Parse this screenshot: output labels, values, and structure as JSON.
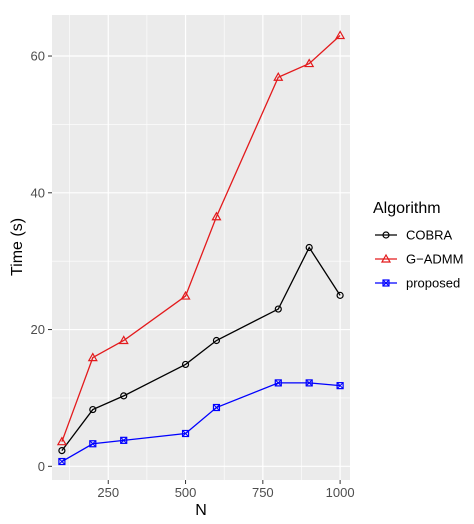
{
  "chart_data": {
    "type": "line",
    "xlabel": "N",
    "ylabel": "Time (s)",
    "x": [
      100,
      200,
      300,
      500,
      600,
      800,
      900,
      1000
    ],
    "xlim": [
      68,
      1032
    ],
    "ylim": [
      -2,
      66
    ],
    "x_ticks": [
      250,
      500,
      750,
      1000
    ],
    "x_tick_labels": [
      "250",
      "500",
      "750",
      "1000"
    ],
    "y_ticks": [
      0,
      20,
      40,
      60
    ],
    "y_tick_labels": [
      "0",
      "20",
      "40",
      "60"
    ],
    "grid": true,
    "legend": {
      "title": "Algorithm",
      "placement": "right"
    },
    "series": [
      {
        "name": "COBRA",
        "color": "#000000",
        "marker": "circle",
        "values": [
          2.3,
          8.3,
          10.3,
          14.9,
          18.4,
          23.0,
          32.0,
          25.0
        ]
      },
      {
        "name": "G−ADMM",
        "color": "#e31a1c",
        "marker": "triangle",
        "values": [
          3.6,
          15.9,
          18.4,
          24.9,
          36.5,
          56.9,
          58.9,
          63.0
        ]
      },
      {
        "name": "proposed",
        "color": "#0000ff",
        "marker": "square-x",
        "values": [
          0.7,
          3.3,
          3.8,
          4.8,
          8.6,
          12.2,
          12.2,
          11.8
        ]
      }
    ]
  }
}
